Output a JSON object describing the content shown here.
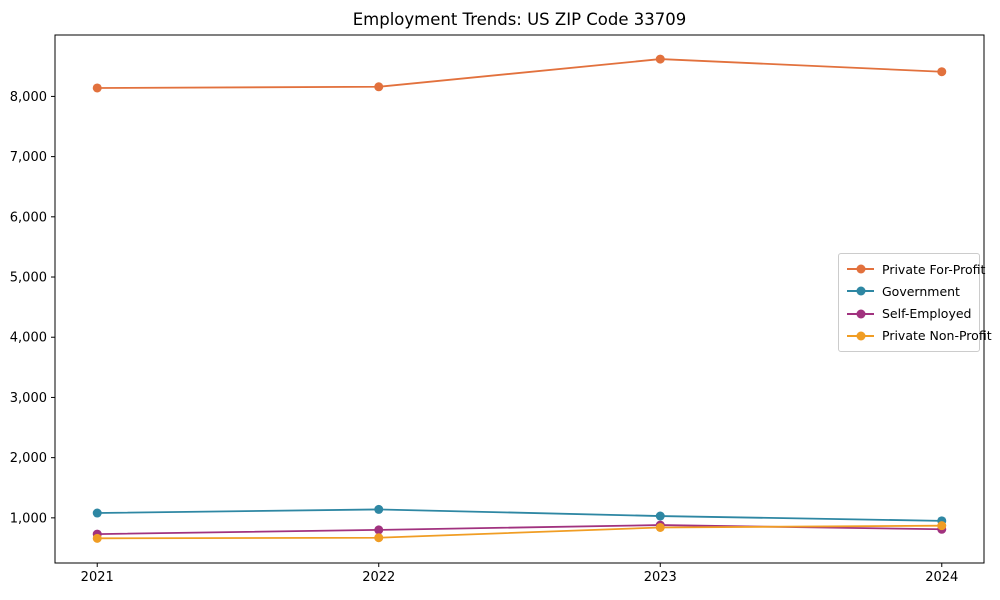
{
  "chart_data": {
    "type": "line",
    "title": "Employment Trends: US ZIP Code 33709",
    "x": [
      2021,
      2022,
      2023,
      2024
    ],
    "x_tick_labels": [
      "2021",
      "2022",
      "2023",
      "2024"
    ],
    "series": [
      {
        "name": "Private For-Profit",
        "color": "#e2713d",
        "values": [
          8140,
          8160,
          8620,
          8410
        ]
      },
      {
        "name": "Government",
        "color": "#2e87a3",
        "values": [
          1080,
          1140,
          1030,
          950
        ]
      },
      {
        "name": "Self-Employed",
        "color": "#a1327f",
        "values": [
          730,
          800,
          880,
          810
        ]
      },
      {
        "name": "Private Non-Profit",
        "color": "#f09d24",
        "values": [
          660,
          670,
          840,
          870
        ]
      }
    ],
    "yticks": [
      {
        "value": 1000,
        "label": "1,000"
      },
      {
        "value": 2000,
        "label": "2,000"
      },
      {
        "value": 3000,
        "label": "3,000"
      },
      {
        "value": 4000,
        "label": "4,000"
      },
      {
        "value": 5000,
        "label": "5,000"
      },
      {
        "value": 6000,
        "label": "6,000"
      },
      {
        "value": 7000,
        "label": "7,000"
      },
      {
        "value": 8000,
        "label": "8,000"
      }
    ],
    "xlim": [
      2020.85,
      2024.15
    ],
    "ylim": [
      250,
      9020
    ],
    "grid": false,
    "legend_position": "center right",
    "axis_color": "#000000",
    "tick_font_size": 13
  }
}
